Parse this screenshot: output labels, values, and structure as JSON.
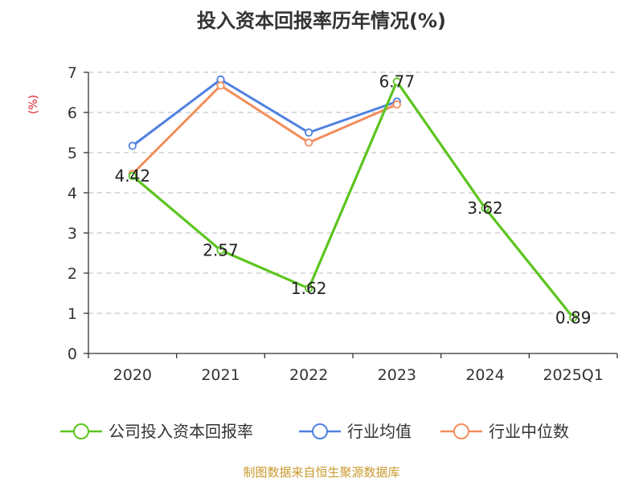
{
  "title": "投入资本回报率历年情况(%)",
  "y_unit": "(%)",
  "source": "制图数据来自恒生聚源数据库",
  "colors": {
    "company": "#5cc41e",
    "industry_avg": "#4f81e0",
    "industry_median": "#f38d5b",
    "grid": "#c8c8c8",
    "axis": "#333333"
  },
  "chart_data": {
    "type": "line",
    "title": "投入资本回报率历年情况(%)",
    "ylabel": "(%)",
    "categories": [
      "2020",
      "2021",
      "2022",
      "2023",
      "2024",
      "2025Q1"
    ],
    "ylim": [
      0,
      7
    ],
    "yticks": [
      0,
      1,
      2,
      3,
      4,
      5,
      6,
      7
    ],
    "grid": "horizontal dashed",
    "legend_position": "bottom",
    "series": [
      {
        "name": "公司投入资本回报率",
        "values": [
          4.42,
          2.57,
          1.62,
          6.77,
          3.62,
          0.89
        ],
        "labels": [
          "4.42",
          "2.57",
          "1.62",
          "6.77",
          "3.62",
          "0.89"
        ]
      },
      {
        "name": "行业均值",
        "values": [
          5.17,
          6.82,
          5.5,
          6.27,
          null,
          null
        ]
      },
      {
        "name": "行业中位数",
        "values": [
          4.47,
          6.67,
          5.25,
          6.2,
          null,
          null
        ]
      }
    ]
  }
}
